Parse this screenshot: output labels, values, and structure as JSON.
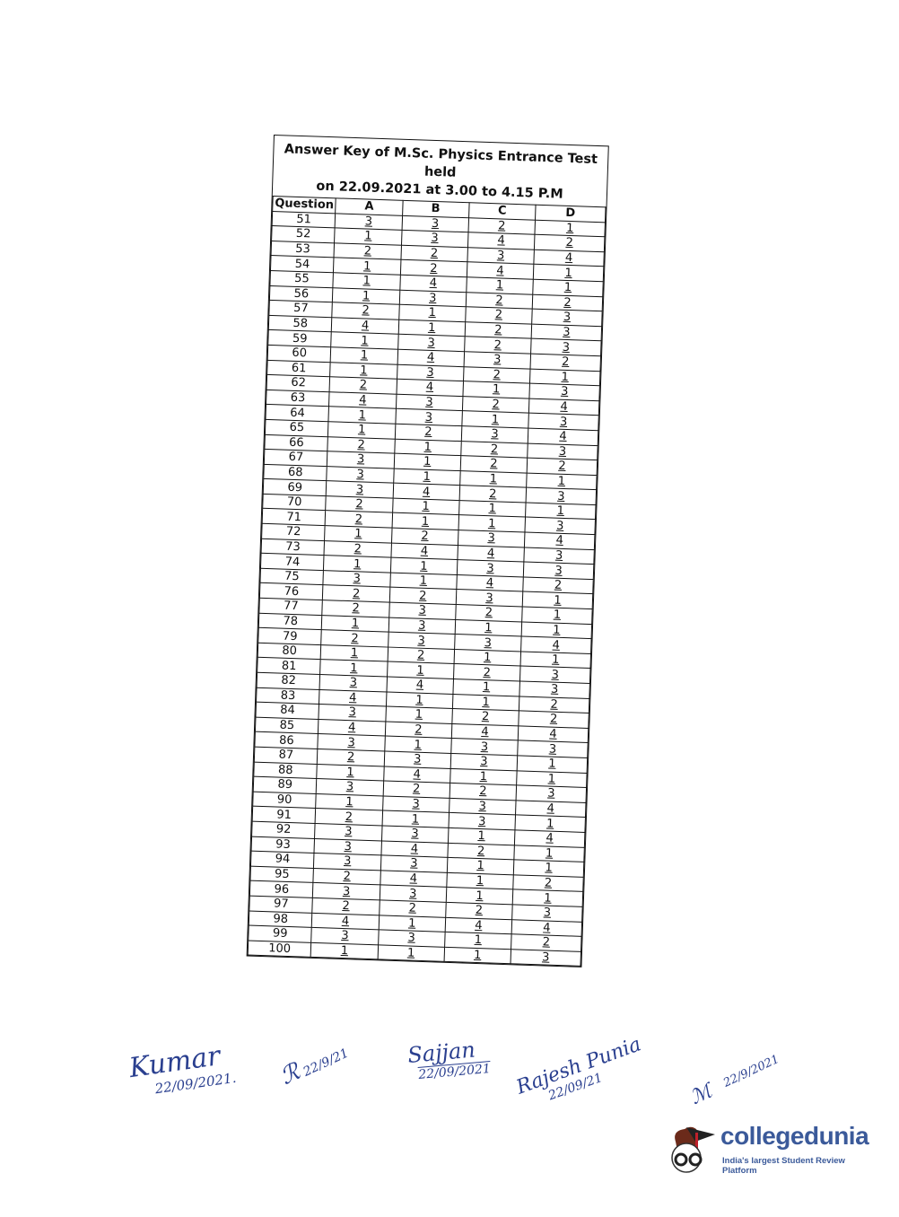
{
  "document": {
    "title_line1": "Answer Key of M.Sc. Physics Entrance Test  held",
    "title_line2": "on 22.09.2021 at 3.00 to 4.15 P.M",
    "columns": [
      "Question",
      "A",
      "B",
      "C",
      "D"
    ],
    "rows": [
      [
        "51",
        "3",
        "3",
        "2",
        "1"
      ],
      [
        "52",
        "1",
        "3",
        "4",
        "2"
      ],
      [
        "53",
        "2",
        "2",
        "3",
        "4"
      ],
      [
        "54",
        "1",
        "2",
        "4",
        "1"
      ],
      [
        "55",
        "1",
        "4",
        "1",
        "1"
      ],
      [
        "56",
        "1",
        "3",
        "2",
        "2"
      ],
      [
        "57",
        "2",
        "1",
        "2",
        "3"
      ],
      [
        "58",
        "4",
        "1",
        "2",
        "3"
      ],
      [
        "59",
        "1",
        "3",
        "2",
        "3"
      ],
      [
        "60",
        "1",
        "4",
        "3",
        "2"
      ],
      [
        "61",
        "1",
        "3",
        "2",
        "1"
      ],
      [
        "62",
        "2",
        "4",
        "1",
        "3"
      ],
      [
        "63",
        "4",
        "3",
        "2",
        "4"
      ],
      [
        "64",
        "1",
        "3",
        "1",
        "3"
      ],
      [
        "65",
        "1",
        "2",
        "3",
        "4"
      ],
      [
        "66",
        "2",
        "1",
        "2",
        "3"
      ],
      [
        "67",
        "3",
        "1",
        "2",
        "2"
      ],
      [
        "68",
        "3",
        "1",
        "1",
        "1"
      ],
      [
        "69",
        "3",
        "4",
        "2",
        "3"
      ],
      [
        "70",
        "2",
        "1",
        "1",
        "1"
      ],
      [
        "71",
        "2",
        "1",
        "1",
        "3"
      ],
      [
        "72",
        "1",
        "2",
        "3",
        "4"
      ],
      [
        "73",
        "2",
        "4",
        "4",
        "3"
      ],
      [
        "74",
        "1",
        "1",
        "3",
        "3"
      ],
      [
        "75",
        "3",
        "1",
        "4",
        "2"
      ],
      [
        "76",
        "2",
        "2",
        "3",
        "1"
      ],
      [
        "77",
        "2",
        "3",
        "2",
        "1"
      ],
      [
        "78",
        "1",
        "3",
        "1",
        "1"
      ],
      [
        "79",
        "2",
        "3",
        "3",
        "4"
      ],
      [
        "80",
        "1",
        "2",
        "1",
        "1"
      ],
      [
        "81",
        "1",
        "1",
        "2",
        "3"
      ],
      [
        "82",
        "3",
        "4",
        "1",
        "3"
      ],
      [
        "83",
        "4",
        "1",
        "1",
        "2"
      ],
      [
        "84",
        "3",
        "1",
        "2",
        "2"
      ],
      [
        "85",
        "4",
        "2",
        "4",
        "4"
      ],
      [
        "86",
        "3",
        "1",
        "3",
        "3"
      ],
      [
        "87",
        "2",
        "3",
        "3",
        "1"
      ],
      [
        "88",
        "1",
        "4",
        "1",
        "1"
      ],
      [
        "89",
        "3",
        "2",
        "2",
        "3"
      ],
      [
        "90",
        "1",
        "3",
        "3",
        "4"
      ],
      [
        "91",
        "2",
        "1",
        "3",
        "1"
      ],
      [
        "92",
        "3",
        "3",
        "1",
        "4"
      ],
      [
        "93",
        "3",
        "4",
        "2",
        "1"
      ],
      [
        "94",
        "3",
        "3",
        "1",
        "1"
      ],
      [
        "95",
        "2",
        "4",
        "1",
        "2"
      ],
      [
        "96",
        "3",
        "3",
        "1",
        "1"
      ],
      [
        "97",
        "2",
        "2",
        "2",
        "3"
      ],
      [
        "98",
        "4",
        "1",
        "4",
        "4"
      ],
      [
        "99",
        "3",
        "3",
        "1",
        "2"
      ],
      [
        "100",
        "1",
        "1",
        "1",
        "3"
      ]
    ]
  },
  "signatures": [
    {
      "name": "Kumar",
      "date": "22/09/2021."
    },
    {
      "name": "",
      "date": "22/9/21"
    },
    {
      "name": "Sajjan",
      "date": "22/09/2021"
    },
    {
      "name": "Rajesh Punia",
      "date": "22/09/21"
    },
    {
      "name": "",
      "date": "22/9/2021"
    }
  ],
  "watermark": {
    "brand": "collegedunia",
    "tagline": "India's largest Student Review Platform",
    "color": "#3b5a9a"
  },
  "colors": {
    "ink": "#111111",
    "signature_ink": "#2a3f8f"
  }
}
